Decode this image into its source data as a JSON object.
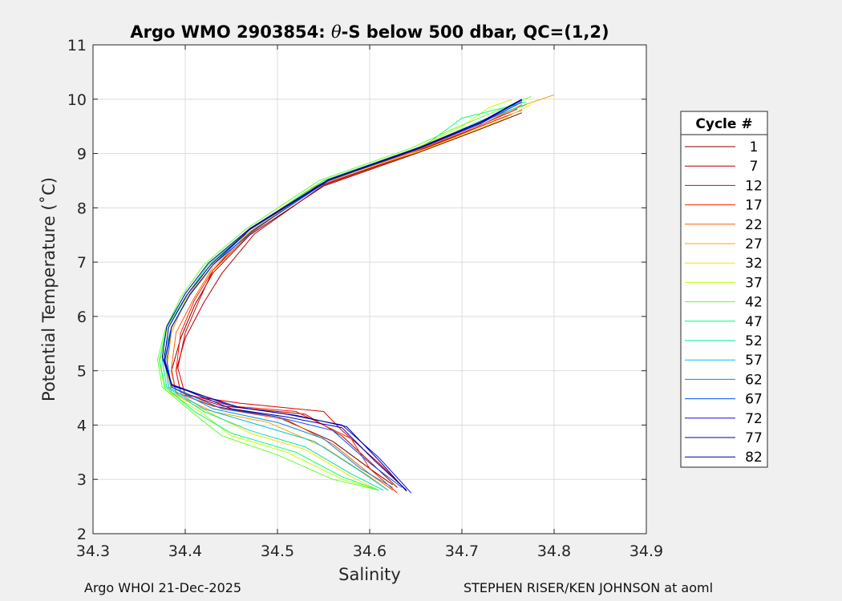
{
  "chart_data": {
    "type": "line",
    "title_prefix": "Argo WMO 2903854: ",
    "title_theta": "θ",
    "title_suffix": "-S below 500 dbar,  QC=(1,2)",
    "xlabel": "Salinity",
    "ylabel": "Potential Temperature (˚C)",
    "xlim": [
      34.3,
      34.9
    ],
    "ylim": [
      2,
      11
    ],
    "xticks": [
      "34.3",
      "34.4",
      "34.5",
      "34.6",
      "34.7",
      "34.8",
      "34.9"
    ],
    "yticks": [
      "2",
      "3",
      "4",
      "5",
      "6",
      "7",
      "8",
      "9",
      "10",
      "11"
    ],
    "grid": true,
    "legend_title": "Cycle #",
    "legend_position": "right",
    "series": [
      {
        "name": "1",
        "color": "#800000",
        "points": [
          [
            34.765,
            9.75
          ],
          [
            34.72,
            9.45
          ],
          [
            34.65,
            9.0
          ],
          [
            34.55,
            8.4
          ],
          [
            34.47,
            7.5
          ],
          [
            34.43,
            6.8
          ],
          [
            34.41,
            6.2
          ],
          [
            34.395,
            5.6
          ],
          [
            34.385,
            5.0
          ],
          [
            34.39,
            4.6
          ],
          [
            34.43,
            4.35
          ],
          [
            34.5,
            4.15
          ],
          [
            34.56,
            3.7
          ],
          [
            34.6,
            3.2
          ],
          [
            34.625,
            2.9
          ]
        ]
      },
      {
        "name": "7",
        "color": "#b00000",
        "points": [
          [
            34.765,
            9.8
          ],
          [
            34.72,
            9.5
          ],
          [
            34.65,
            9.02
          ],
          [
            34.55,
            8.42
          ],
          [
            34.475,
            7.52
          ],
          [
            34.44,
            6.8
          ],
          [
            34.42,
            6.25
          ],
          [
            34.4,
            5.6
          ],
          [
            34.39,
            5.0
          ],
          [
            34.395,
            4.6
          ],
          [
            34.44,
            4.35
          ],
          [
            34.53,
            4.2
          ],
          [
            34.57,
            3.8
          ],
          [
            34.605,
            3.25
          ],
          [
            34.63,
            2.85
          ]
        ]
      },
      {
        "name": "12",
        "color": "#dd0000",
        "points": [
          [
            34.76,
            9.82
          ],
          [
            34.71,
            9.45
          ],
          [
            34.645,
            9.0
          ],
          [
            34.545,
            8.4
          ],
          [
            34.465,
            7.5
          ],
          [
            34.43,
            6.85
          ],
          [
            34.415,
            6.3
          ],
          [
            34.4,
            5.7
          ],
          [
            34.392,
            5.05
          ],
          [
            34.4,
            4.55
          ],
          [
            34.46,
            4.4
          ],
          [
            34.55,
            4.25
          ],
          [
            34.57,
            3.9
          ],
          [
            34.61,
            3.3
          ],
          [
            34.64,
            2.8
          ]
        ]
      },
      {
        "name": "17",
        "color": "#ff2000",
        "points": [
          [
            34.76,
            9.85
          ],
          [
            34.71,
            9.5
          ],
          [
            34.645,
            9.03
          ],
          [
            34.545,
            8.43
          ],
          [
            34.47,
            7.52
          ],
          [
            34.43,
            6.85
          ],
          [
            34.41,
            6.3
          ],
          [
            34.395,
            5.7
          ],
          [
            34.39,
            5.0
          ],
          [
            34.395,
            4.6
          ],
          [
            34.45,
            4.35
          ],
          [
            34.52,
            4.25
          ],
          [
            34.58,
            3.75
          ],
          [
            34.6,
            3.2
          ],
          [
            34.63,
            2.75
          ]
        ]
      },
      {
        "name": "22",
        "color": "#ff6000",
        "points": [
          [
            34.765,
            9.9
          ],
          [
            34.72,
            9.52
          ],
          [
            34.65,
            9.05
          ],
          [
            34.55,
            8.45
          ],
          [
            34.47,
            7.55
          ],
          [
            34.43,
            6.9
          ],
          [
            34.41,
            6.35
          ],
          [
            34.39,
            5.7
          ],
          [
            34.385,
            5.05
          ],
          [
            34.39,
            4.6
          ],
          [
            34.44,
            4.3
          ],
          [
            34.51,
            4.1
          ],
          [
            34.56,
            3.65
          ],
          [
            34.6,
            3.1
          ],
          [
            34.625,
            2.8
          ]
        ]
      },
      {
        "name": "27",
        "color": "#ffa000",
        "points": [
          [
            34.8,
            10.08
          ],
          [
            34.76,
            9.85
          ],
          [
            34.7,
            9.45
          ],
          [
            34.63,
            8.95
          ],
          [
            34.54,
            8.4
          ],
          [
            34.465,
            7.55
          ],
          [
            34.425,
            6.9
          ],
          [
            34.4,
            6.3
          ],
          [
            34.385,
            5.7
          ],
          [
            34.38,
            5.05
          ],
          [
            34.385,
            4.6
          ],
          [
            34.43,
            4.25
          ],
          [
            34.49,
            4.05
          ],
          [
            34.55,
            3.6
          ],
          [
            34.6,
            3.05
          ],
          [
            34.62,
            2.8
          ]
        ]
      },
      {
        "name": "32",
        "color": "#ffe000",
        "points": [
          [
            34.775,
            9.9
          ],
          [
            34.74,
            9.6
          ],
          [
            34.66,
            9.08
          ],
          [
            34.55,
            8.47
          ],
          [
            34.47,
            7.57
          ],
          [
            34.43,
            6.9
          ],
          [
            34.4,
            6.3
          ],
          [
            34.383,
            5.7
          ],
          [
            34.378,
            5.1
          ],
          [
            34.383,
            4.6
          ],
          [
            34.43,
            4.2
          ],
          [
            34.47,
            3.85
          ],
          [
            34.53,
            3.55
          ],
          [
            34.58,
            3.05
          ],
          [
            34.61,
            2.8
          ]
        ]
      },
      {
        "name": "37",
        "color": "#c0ff00",
        "points": [
          [
            34.755,
            10.0
          ],
          [
            34.73,
            9.85
          ],
          [
            34.7,
            9.5
          ],
          [
            34.65,
            9.1
          ],
          [
            34.55,
            8.5
          ],
          [
            34.47,
            7.6
          ],
          [
            34.425,
            6.95
          ],
          [
            34.4,
            6.35
          ],
          [
            34.38,
            5.75
          ],
          [
            34.372,
            5.15
          ],
          [
            34.378,
            4.65
          ],
          [
            34.42,
            4.2
          ],
          [
            34.45,
            3.8
          ],
          [
            34.51,
            3.5
          ],
          [
            34.57,
            3.0
          ],
          [
            34.61,
            2.8
          ]
        ]
      },
      {
        "name": "42",
        "color": "#60ff30",
        "points": [
          [
            34.775,
            10.05
          ],
          [
            34.74,
            9.8
          ],
          [
            34.69,
            9.45
          ],
          [
            34.645,
            9.1
          ],
          [
            34.545,
            8.5
          ],
          [
            34.465,
            7.6
          ],
          [
            34.42,
            6.95
          ],
          [
            34.395,
            6.35
          ],
          [
            34.378,
            5.75
          ],
          [
            34.37,
            5.2
          ],
          [
            34.375,
            4.7
          ],
          [
            34.41,
            4.2
          ],
          [
            34.44,
            3.8
          ],
          [
            34.5,
            3.45
          ],
          [
            34.56,
            3.0
          ],
          [
            34.61,
            2.8
          ]
        ]
      },
      {
        "name": "47",
        "color": "#00ff70",
        "points": [
          [
            34.77,
            9.95
          ],
          [
            34.7,
            9.65
          ],
          [
            34.66,
            9.15
          ],
          [
            34.55,
            8.5
          ],
          [
            34.47,
            7.6
          ],
          [
            34.425,
            6.95
          ],
          [
            34.4,
            6.35
          ],
          [
            34.38,
            5.8
          ],
          [
            34.372,
            5.2
          ],
          [
            34.378,
            4.7
          ],
          [
            34.41,
            4.25
          ],
          [
            34.45,
            3.85
          ],
          [
            34.52,
            3.5
          ],
          [
            34.57,
            3.05
          ],
          [
            34.61,
            2.8
          ]
        ]
      },
      {
        "name": "52",
        "color": "#00e0b0",
        "points": [
          [
            34.77,
            9.9
          ],
          [
            34.72,
            9.6
          ],
          [
            34.66,
            9.15
          ],
          [
            34.555,
            8.5
          ],
          [
            34.475,
            7.6
          ],
          [
            34.43,
            6.95
          ],
          [
            34.405,
            6.4
          ],
          [
            34.385,
            5.8
          ],
          [
            34.375,
            5.2
          ],
          [
            34.38,
            4.7
          ],
          [
            34.42,
            4.25
          ],
          [
            34.47,
            3.9
          ],
          [
            34.53,
            3.6
          ],
          [
            34.58,
            3.1
          ],
          [
            34.615,
            2.8
          ]
        ]
      },
      {
        "name": "57",
        "color": "#00c0e0",
        "points": [
          [
            34.76,
            9.9
          ],
          [
            34.72,
            9.55
          ],
          [
            34.655,
            9.1
          ],
          [
            34.555,
            8.5
          ],
          [
            34.475,
            7.6
          ],
          [
            34.43,
            6.95
          ],
          [
            34.405,
            6.4
          ],
          [
            34.385,
            5.8
          ],
          [
            34.378,
            5.2
          ],
          [
            34.382,
            4.7
          ],
          [
            34.42,
            4.3
          ],
          [
            34.48,
            4.0
          ],
          [
            34.54,
            3.7
          ],
          [
            34.59,
            3.15
          ],
          [
            34.62,
            2.8
          ]
        ]
      },
      {
        "name": "62",
        "color": "#0090e0",
        "points": [
          [
            34.765,
            9.95
          ],
          [
            34.72,
            9.55
          ],
          [
            34.655,
            9.1
          ],
          [
            34.555,
            8.5
          ],
          [
            34.475,
            7.6
          ],
          [
            34.43,
            6.95
          ],
          [
            34.405,
            6.4
          ],
          [
            34.385,
            5.8
          ],
          [
            34.378,
            5.2
          ],
          [
            34.385,
            4.7
          ],
          [
            34.43,
            4.3
          ],
          [
            34.5,
            4.05
          ],
          [
            34.55,
            3.75
          ],
          [
            34.59,
            3.2
          ],
          [
            34.625,
            2.85
          ]
        ]
      },
      {
        "name": "67",
        "color": "#0050ff",
        "points": [
          [
            34.765,
            9.95
          ],
          [
            34.72,
            9.55
          ],
          [
            34.655,
            9.1
          ],
          [
            34.555,
            8.5
          ],
          [
            34.475,
            7.6
          ],
          [
            34.43,
            6.95
          ],
          [
            34.405,
            6.4
          ],
          [
            34.385,
            5.8
          ],
          [
            34.38,
            5.2
          ],
          [
            34.385,
            4.7
          ],
          [
            34.44,
            4.3
          ],
          [
            34.5,
            4.15
          ],
          [
            34.56,
            3.9
          ],
          [
            34.6,
            3.3
          ],
          [
            34.635,
            2.85
          ]
        ]
      },
      {
        "name": "72",
        "color": "#1010e0",
        "points": [
          [
            34.765,
            10.0
          ],
          [
            34.72,
            9.55
          ],
          [
            34.655,
            9.1
          ],
          [
            34.555,
            8.5
          ],
          [
            34.47,
            7.6
          ],
          [
            34.43,
            6.95
          ],
          [
            34.405,
            6.4
          ],
          [
            34.385,
            5.8
          ],
          [
            34.378,
            5.2
          ],
          [
            34.385,
            4.75
          ],
          [
            34.45,
            4.35
          ],
          [
            34.51,
            4.2
          ],
          [
            34.57,
            4.0
          ],
          [
            34.61,
            3.4
          ],
          [
            34.645,
            2.75
          ]
        ]
      },
      {
        "name": "77",
        "color": "#0000b0",
        "points": [
          [
            34.765,
            10.0
          ],
          [
            34.72,
            9.58
          ],
          [
            34.655,
            9.12
          ],
          [
            34.555,
            8.52
          ],
          [
            34.47,
            7.62
          ],
          [
            34.425,
            6.98
          ],
          [
            34.4,
            6.42
          ],
          [
            34.38,
            5.82
          ],
          [
            34.375,
            5.25
          ],
          [
            34.385,
            4.75
          ],
          [
            34.45,
            4.3
          ],
          [
            34.51,
            4.15
          ],
          [
            34.57,
            3.95
          ],
          [
            34.605,
            3.35
          ],
          [
            34.64,
            2.8
          ]
        ]
      },
      {
        "name": "82",
        "color": "#000090",
        "points": [
          [
            34.765,
            9.98
          ],
          [
            34.72,
            9.57
          ],
          [
            34.655,
            9.11
          ],
          [
            34.555,
            8.51
          ],
          [
            34.47,
            7.6
          ],
          [
            34.428,
            6.96
          ],
          [
            34.402,
            6.4
          ],
          [
            34.382,
            5.8
          ],
          [
            34.377,
            5.2
          ],
          [
            34.386,
            4.72
          ],
          [
            34.46,
            4.32
          ],
          [
            34.52,
            4.18
          ],
          [
            34.575,
            3.97
          ],
          [
            34.61,
            3.35
          ],
          [
            34.64,
            2.78
          ]
        ]
      }
    ]
  },
  "footer": {
    "left": "Argo WHOI 21-Dec-2025",
    "right": "STEPHEN RISER/KEN JOHNSON at aoml"
  }
}
